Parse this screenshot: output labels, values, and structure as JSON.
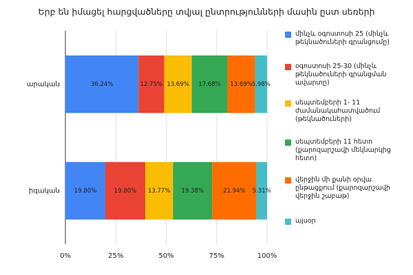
{
  "chart_data": {
    "type": "stacked_barh",
    "title": "Երբ են իմացել հարցվածները տվյալ ընտրությունների մասին ըստ սեռերի",
    "categories": [
      "արական",
      "իգական"
    ],
    "series": [
      {
        "name": "մինչև օգոստոսի 25 (մինչև թեկնածուների գրանցումը)",
        "color": "#4285f4",
        "values": [
          36.24,
          19.8
        ],
        "value_labels": [
          "36.24%",
          "19.80%"
        ]
      },
      {
        "name": "օգոստոսի 25-30 (մինչև թեկնածուների գրանցման ավարտը)",
        "color": "#ea4335",
        "values": [
          12.75,
          19.8
        ],
        "value_labels": [
          "12.75%",
          "19.80%"
        ]
      },
      {
        "name": "սեպտեմբերի 1- 11 ժամանակահատվածում (թեկնածուների)",
        "color": "#fbbc04",
        "values": [
          13.69,
          13.77
        ],
        "value_labels": [
          "13.69%",
          "13.77%"
        ]
      },
      {
        "name": "սեպտեմբերի 11 հետո (քարոզարշավի մեկնարկից հետո)",
        "color": "#34a853",
        "values": [
          17.68,
          19.38
        ],
        "value_labels": [
          "17.68%",
          "19.38%"
        ]
      },
      {
        "name": "վերջին մի քանի օրվա ընթացքում (քարոզարշավի վերջին շաբաթ)",
        "color": "#ff6d01",
        "values": [
          13.69,
          21.94
        ],
        "value_labels": [
          "13.69%",
          "21.94%"
        ]
      },
      {
        "name": "այսօր",
        "color": "#46bdc6",
        "values": [
          5.98,
          5.31
        ],
        "value_labels": [
          "5.98%",
          "5.31%"
        ]
      }
    ],
    "xlim": [
      0,
      100
    ],
    "xticks": [
      {
        "value": 0,
        "label": "0%"
      },
      {
        "value": 25,
        "label": "25%"
      },
      {
        "value": 50,
        "label": "50%"
      },
      {
        "value": 75,
        "label": "75%"
      },
      {
        "value": 100,
        "label": "100%"
      }
    ],
    "grid": true
  }
}
